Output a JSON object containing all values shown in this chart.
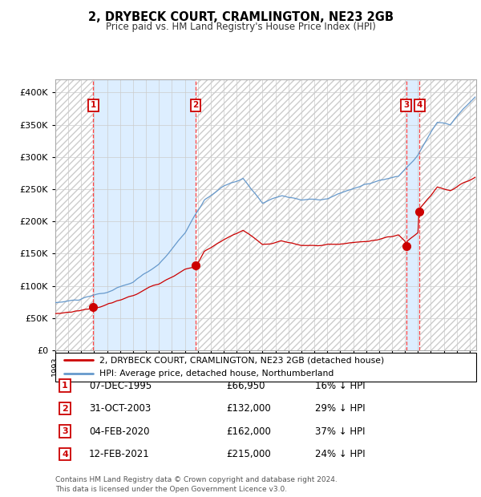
{
  "title": "2, DRYBECK COURT, CRAMLINGTON, NE23 2GB",
  "subtitle": "Price paid vs. HM Land Registry's House Price Index (HPI)",
  "sales": [
    {
      "label": "1",
      "date": 1995.93,
      "price": 66950
    },
    {
      "label": "2",
      "date": 2003.83,
      "price": 132000
    },
    {
      "label": "3",
      "date": 2020.09,
      "price": 162000
    },
    {
      "label": "4",
      "date": 2021.12,
      "price": 215000
    }
  ],
  "sale_annotations": [
    {
      "num": 1,
      "date_str": "07-DEC-1995",
      "price_str": "£66,950",
      "pct_str": "16% ↓ HPI"
    },
    {
      "num": 2,
      "date_str": "31-OCT-2003",
      "price_str": "£132,000",
      "pct_str": "29% ↓ HPI"
    },
    {
      "num": 3,
      "date_str": "04-FEB-2020",
      "price_str": "£162,000",
      "pct_str": "37% ↓ HPI"
    },
    {
      "num": 4,
      "date_str": "12-FEB-2021",
      "price_str": "£215,000",
      "pct_str": "24% ↓ HPI"
    }
  ],
  "legend_line1": "2, DRYBECK COURT, CRAMLINGTON, NE23 2GB (detached house)",
  "legend_line2": "HPI: Average price, detached house, Northumberland",
  "footer": "Contains HM Land Registry data © Crown copyright and database right 2024.\nThis data is licensed under the Open Government Licence v3.0.",
  "ylim": [
    0,
    420000
  ],
  "xlim_start": 1993.0,
  "xlim_end": 2025.5,
  "red_color": "#cc0000",
  "blue_color": "#6699cc",
  "bg_shaded": "#ddeeff",
  "bg_hatch_color": "#cccccc"
}
